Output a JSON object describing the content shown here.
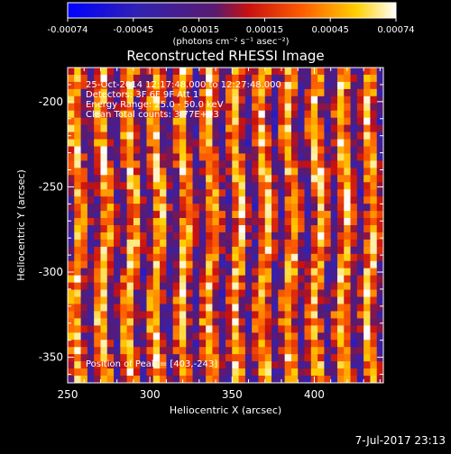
{
  "colorbar": {
    "ticks": [
      "-0.00074",
      "-0.00045",
      "-0.00015",
      "0.00015",
      "0.00045",
      "0.00074"
    ],
    "unit_label": "(photons cm⁻² s⁻¹ asec⁻²)"
  },
  "footer": {
    "date_stamp": "7-Jul-2017 23:13"
  },
  "chart_data": {
    "type": "heatmap",
    "title": "Reconstructed RHESSI Image",
    "xlabel": "Heliocentric X (arcsec)",
    "ylabel": "Heliocentric Y (arcsec)",
    "xlim": [
      250,
      442
    ],
    "ylim": [
      -365,
      -180
    ],
    "xticks": [
      250,
      300,
      350,
      400
    ],
    "yticks": [
      -200,
      -250,
      -300,
      -350
    ],
    "value_range": [
      -0.00074,
      0.00074
    ],
    "colormap": "rhessi-thermal",
    "annotations": [
      "25-Oct-2014 12:17:48.000 to 12:27:48.000",
      "Detectors: 3F 6F 9F  Att 1",
      "Energy Range: 25.0 - 50.0 keV",
      "Clean    Total counts: 3.77E+03"
    ],
    "peak_label": "Position of Peak = [403,-243]",
    "peak_position": [
      403,
      -243
    ],
    "pattern": "vertical-stripe-modulation"
  }
}
